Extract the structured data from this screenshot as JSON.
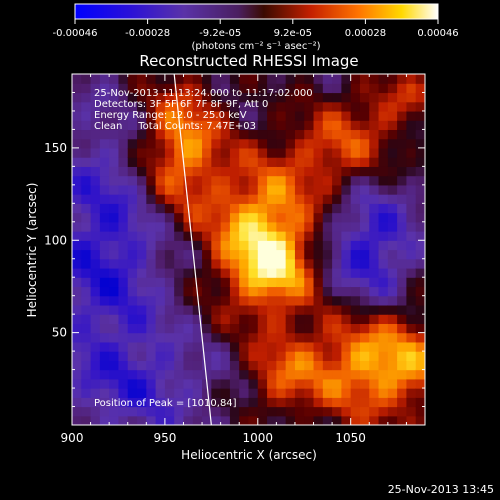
{
  "chart_data": {
    "type": "heatmap",
    "title": "Reconstructed RHESSI Image",
    "xlabel": "Heliocentric X (arcsec)",
    "ylabel": "Heliocentric Y (arcsec)",
    "xlim": [
      900,
      1090
    ],
    "ylim": [
      0,
      190
    ],
    "x_ticks": [
      900,
      950,
      1000,
      1050
    ],
    "y_ticks": [
      50,
      100,
      150
    ],
    "colorbar": {
      "tick_labels": [
        "-0.00046",
        "-0.00028",
        "-9.2e-05",
        "9.2e-05",
        "0.00028",
        "0.00046"
      ],
      "unit_label": "(photons cm⁻² s⁻¹ asec⁻²)",
      "min": -0.00046,
      "max": 0.00046,
      "stops": [
        "#0000ff",
        "#3a00cc",
        "#6a2aa6",
        "#5b2b90",
        "#8a1e00",
        "#d52a00",
        "#ff7a00",
        "#ffd200",
        "#ffffa0",
        "#ffffff"
      ]
    },
    "annotations": [
      "25-Nov-2013 11:13:24.000 to 11:17:02.000",
      "Detectors: 3F 5F 6F 7F 8F 9F, Att 0",
      "Energy Range: 12.0 - 25.0 keV",
      "Clean     Total Counts: 7.47E+03",
      "Position of Peak = [1010,84]"
    ],
    "peak": {
      "x": 1010,
      "y": 84
    },
    "limb_line": {
      "x_top": 955,
      "x_bottom": 975,
      "y_top": 190,
      "y_bottom": 0
    }
  },
  "footer": {
    "date": "25-Nov-2013 13:45"
  }
}
